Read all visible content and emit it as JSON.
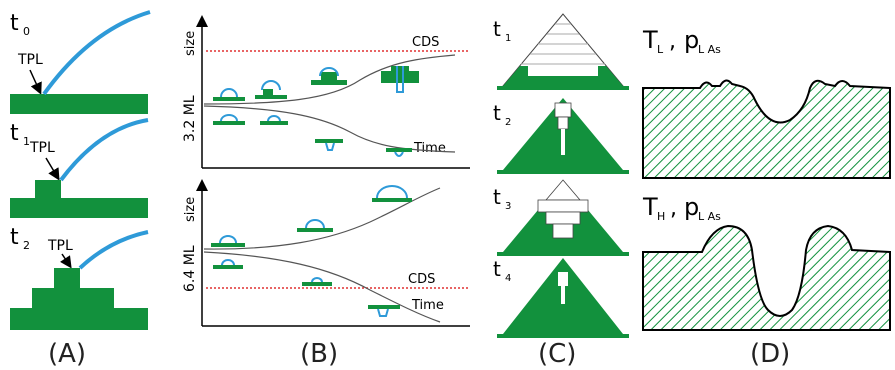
{
  "panels": {
    "A": {
      "label": "(A)",
      "times": [
        "t",
        "t",
        "t"
      ],
      "time_subs": [
        "0",
        "1",
        "2"
      ],
      "tpl": "TPL"
    },
    "B": {
      "label": "(B)",
      "top": {
        "ylabel": "size",
        "thickness": "3.2 ML",
        "cds": "CDS",
        "xlabel": "Time"
      },
      "bottom": {
        "ylabel": "size",
        "thickness": "6.4 ML",
        "cds": "CDS",
        "xlabel": "Time"
      }
    },
    "C": {
      "label": "(C)",
      "times": [
        "t",
        "t",
        "t",
        "t"
      ],
      "time_subs": [
        "1",
        "2",
        "3",
        "4"
      ]
    },
    "D": {
      "label": "(D)",
      "top": {
        "T": "T",
        "T_sub": "L",
        "p": "p",
        "p_sub": "L As"
      },
      "bottom": {
        "T": "T",
        "T_sub": "H",
        "p": "p",
        "p_sub": "L As"
      }
    }
  },
  "colors": {
    "green": "#12913d",
    "blue": "#2e9ad8",
    "cds_red": "#e03030"
  }
}
